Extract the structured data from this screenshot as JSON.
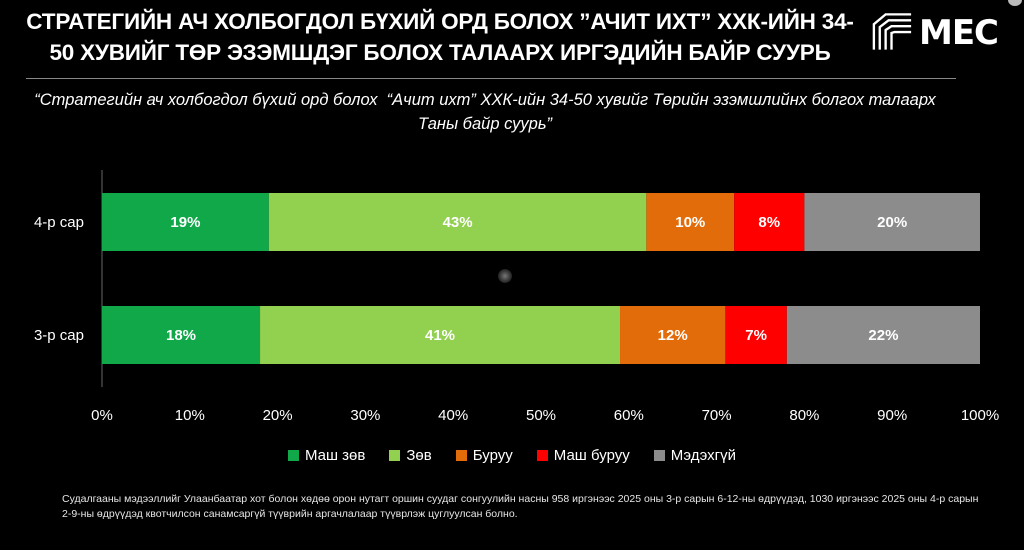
{
  "title": "СТРАТЕГИЙН АЧ ХОЛБОГДОЛ БҮХИЙ ОРД БОЛОХ ”АЧИТ ИХТ” ХХК-ИЙН 34-50 ХУВИЙГ ТӨР ЭЗЭМШДЭГ БОЛОХ ТАЛААРХ ИРГЭДИЙН БАЙР СУУРЬ",
  "logo": {
    "text": "MEC"
  },
  "subtitle": "“Стратегийн ач холбогдол бүхий орд болох  “Ачит ихт” ХХК-ийн 34-50 хувийг Төрийн эзэмшлийнх болгох талаарх Таны байр суурь”",
  "footnote": "Судалгааны мэдээллийг Улаанбаатар хот болон хөдөө орон нутагт оршин суудаг сонгуулийн насны 958 иргэнээс 2025 оны 3-р сарын 6-12-ны өдрүүдэд, 1030 иргэнээс 2025 оны 4-р сарын 2-9-ны өдрүүдэд квотчилсон санамсаргүй түүврийн аргачлалаар түүврлэж цуглуулсан болно.",
  "chart_data": {
    "type": "bar",
    "orientation": "horizontal",
    "stacked": true,
    "categories": [
      "4-р сар",
      "3-р сар"
    ],
    "series": [
      {
        "name": "Маш зөв",
        "color": "#11a84a",
        "values": [
          19,
          18
        ],
        "labels": [
          "19%",
          "18%"
        ]
      },
      {
        "name": "Зөв",
        "color": "#92d050",
        "values": [
          43,
          41
        ],
        "labels": [
          "43%",
          "41%"
        ]
      },
      {
        "name": "Буруу",
        "color": "#e36c0a",
        "values": [
          10,
          12
        ],
        "labels": [
          "10%",
          "12%"
        ]
      },
      {
        "name": "Маш буруу",
        "color": "#ff0000",
        "values": [
          8,
          7
        ],
        "labels": [
          "8%",
          "7%"
        ]
      },
      {
        "name": "Мэдэхгүй",
        "color": "#8c8c8c",
        "values": [
          20,
          22
        ],
        "labels": [
          "20%",
          "22%"
        ]
      }
    ],
    "x_ticks": [
      "0%",
      "10%",
      "20%",
      "30%",
      "40%",
      "50%",
      "60%",
      "70%",
      "80%",
      "90%",
      "100%"
    ],
    "xlim": [
      0,
      100
    ],
    "legend_position": "bottom",
    "grid": false
  }
}
